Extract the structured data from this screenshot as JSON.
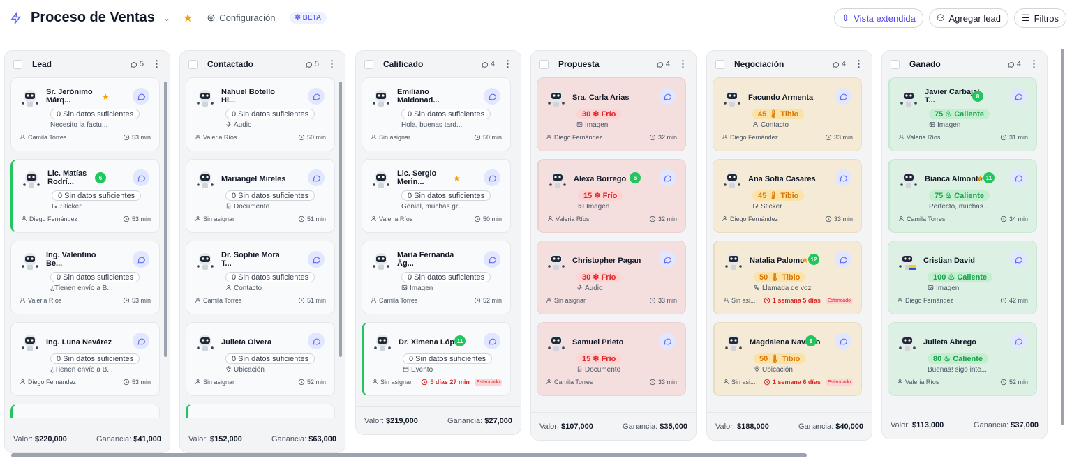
{
  "header": {
    "title": "Proceso de Ventas",
    "config_label": "Configuración",
    "beta_label": "BETA",
    "btn_extended": "Vista extendida",
    "btn_add": "Agregar lead",
    "btn_filters": "Filtros"
  },
  "colors": {
    "accent": "#4f46e5",
    "green": "#22c55e",
    "frio": "#dc2626",
    "tibio": "#d97706",
    "caliente": "#16a34a"
  },
  "columns": [
    {
      "name": "Lead",
      "count": "5",
      "footer": {
        "valor_label": "Valor:",
        "valor": "$220,000",
        "ganancia_label": "Ganancia:",
        "ganancia": "$41,000"
      },
      "cards": [
        {
          "name": "Sr. Jerónimo Márq...",
          "star": true,
          "pill": "0 Sin datos suficientes",
          "pill_type": "gray",
          "sub": "Necesito la factu...",
          "assignee": "Camila Torres",
          "time": "53 min"
        },
        {
          "name": "Lic. Matías Rodrí...",
          "badge": "6",
          "bar": true,
          "pill": "0 Sin datos suficientes",
          "pill_type": "gray",
          "sub": "Sticker",
          "sub_icon": "sticker-icon",
          "assignee": "Diego Fernández",
          "time": "53 min"
        },
        {
          "name": "Ing. Valentino Be...",
          "pill": "0 Sin datos suficientes",
          "pill_type": "gray",
          "sub": "¿Tienen envío a B...",
          "assignee": "Valeria Ríos",
          "time": "53 min"
        },
        {
          "name": "Ing. Luna Nevárez",
          "pill": "0 Sin datos suficientes",
          "pill_type": "gray",
          "sub": "¿Tienen envío a B...",
          "assignee": "Diego Fernández",
          "time": "53 min"
        }
      ]
    },
    {
      "name": "Contactado",
      "count": "5",
      "footer": {
        "valor_label": "Valor:",
        "valor": "$152,000",
        "ganancia_label": "Ganancia:",
        "ganancia": "$63,000"
      },
      "cards": [
        {
          "name": "Nahuel Botello Hi...",
          "pill": "0 Sin datos suficientes",
          "pill_type": "gray",
          "sub": "Audio",
          "sub_icon": "mic-icon",
          "assignee": "Valeria Ríos",
          "time": "50 min"
        },
        {
          "name": "Mariangel Mireles",
          "pill": "0 Sin datos suficientes",
          "pill_type": "gray",
          "sub": "Documento",
          "sub_icon": "document-icon",
          "assignee": "Sin asignar",
          "time": "51 min"
        },
        {
          "name": "Dr. Sophie Mora T...",
          "pill": "0 Sin datos suficientes",
          "pill_type": "gray",
          "sub": "Contacto",
          "sub_icon": "contact-icon",
          "assignee": "Camila Torres",
          "time": "51 min"
        },
        {
          "name": "Julieta Olvera",
          "pill": "0 Sin datos suficientes",
          "pill_type": "gray",
          "sub": "Ubicación",
          "sub_icon": "location-icon",
          "assignee": "Sin asignar",
          "time": "52 min"
        }
      ]
    },
    {
      "name": "Calificado",
      "count": "4",
      "footer": {
        "valor_label": "Valor:",
        "valor": "$219,000",
        "ganancia_label": "Ganancia:",
        "ganancia": "$27,000"
      },
      "cards": [
        {
          "name": "Emiliano Maldonad...",
          "pill": "0 Sin datos suficientes",
          "pill_type": "gray",
          "sub": "Hola, buenas tard...",
          "assignee": "Sin asignar",
          "time": "50 min"
        },
        {
          "name": "Lic. Sergio Merin...",
          "star": true,
          "pill": "0 Sin datos suficientes",
          "pill_type": "gray",
          "sub": "Genial, muchas gr...",
          "assignee": "Valeria Ríos",
          "time": "50 min"
        },
        {
          "name": "María Fernanda Ág...",
          "pill": "0 Sin datos suficientes",
          "pill_type": "gray",
          "sub": "Imagen",
          "sub_icon": "image-icon",
          "assignee": "Camila Torres",
          "time": "52 min"
        },
        {
          "name": "Dr. Ximena López",
          "badge": "11",
          "bar": true,
          "pill": "0 Sin datos suficientes",
          "pill_type": "gray",
          "sub": "Evento",
          "sub_icon": "calendar-icon",
          "assignee": "Sin asignar",
          "stall": "5 días 27 min",
          "stall_tag": "Estancado"
        }
      ]
    },
    {
      "name": "Propuesta",
      "count": "4",
      "footer": {
        "valor_label": "Valor:",
        "valor": "$107,000",
        "ganancia_label": "Ganancia:",
        "ganancia": "$35,000"
      },
      "cards": [
        {
          "name": "Sra. Carla Arias",
          "tone": "red",
          "pill": "30 ❄ Frío",
          "pill_type": "frio",
          "sub": "Imagen",
          "sub_icon": "image-icon",
          "assignee": "Diego Fernández",
          "time": "32 min"
        },
        {
          "name": "Alexa Borrego",
          "badge": "6",
          "bar": true,
          "tone": "red",
          "pill": "15 ❄ Frío",
          "pill_type": "frio",
          "sub": "Imagen",
          "sub_icon": "image-icon",
          "assignee": "Valeria Ríos",
          "time": "32 min"
        },
        {
          "name": "Christopher Pagan",
          "tone": "red",
          "pill": "30 ❄ Frío",
          "pill_type": "frio",
          "sub": "Audio",
          "sub_icon": "mic-icon",
          "assignee": "Sin asignar",
          "time": "33 min"
        },
        {
          "name": "Samuel Prieto",
          "tone": "red",
          "pill": "15 ❄ Frío",
          "pill_type": "frio",
          "sub": "Documento",
          "sub_icon": "document-icon",
          "assignee": "Camila Torres",
          "time": "33 min"
        }
      ]
    },
    {
      "name": "Negociación",
      "count": "4",
      "footer": {
        "valor_label": "Valor:",
        "valor": "$188,000",
        "ganancia_label": "Ganancia:",
        "ganancia": "$40,000"
      },
      "cards": [
        {
          "name": "Facundo Armenta",
          "tone": "amber",
          "pill": "45 🌡 Tibio",
          "pill_type": "tibio",
          "sub": "Contacto",
          "sub_icon": "contact-icon",
          "assignee": "Diego Fernández",
          "time": "33 min"
        },
        {
          "name": "Ana Sofía Casares",
          "tone": "amber",
          "pill": "45 🌡 Tibio",
          "pill_type": "tibio",
          "sub": "Sticker",
          "sub_icon": "sticker-icon",
          "assignee": "Diego Fernández",
          "time": "33 min"
        },
        {
          "name": "Natalia Palomo",
          "star": true,
          "badge": "12",
          "bar": true,
          "tone": "amber",
          "pill": "50 🌡 Tibio",
          "pill_type": "tibio",
          "sub": "Llamada de voz",
          "sub_icon": "phone-icon",
          "assignee": "Sin asi...",
          "stall": "1 semana 5 días",
          "stall_tag": "Estancado"
        },
        {
          "name": "Magdalena Navarro",
          "badge": "8",
          "bar": true,
          "tone": "amber",
          "pill": "50 🌡 Tibio",
          "pill_type": "tibio",
          "sub": "Ubicación",
          "sub_icon": "location-icon",
          "assignee": "Sin asi...",
          "stall": "1 semana 6 días",
          "stall_tag": "Estancado"
        }
      ]
    },
    {
      "name": "Ganado",
      "count": "4",
      "footer": {
        "valor_label": "Valor:",
        "valor": "$113,000",
        "ganancia_label": "Ganancia:",
        "ganancia": "$37,000"
      },
      "cards": [
        {
          "name": "Javier Carbajal T...",
          "badge": "8",
          "bar": true,
          "tone": "green",
          "pill": "75 ♨ Caliente",
          "pill_type": "caliente",
          "sub": "Imagen",
          "sub_icon": "image-icon",
          "assignee": "Valeria Ríos",
          "time": "31 min"
        },
        {
          "name": "Bianca Almonte",
          "star": true,
          "badge": "11",
          "bar": true,
          "tone": "green",
          "pill": "75 ♨ Caliente",
          "pill_type": "caliente",
          "sub": "Perfecto, muchas ...",
          "assignee": "Camila Torres",
          "time": "34 min"
        },
        {
          "name": "Cristian David",
          "flag": true,
          "tone": "green",
          "pill": "100 ♨ Caliente",
          "pill_type": "caliente",
          "sub": "Imagen",
          "sub_icon": "image-icon",
          "assignee": "Diego Fernández",
          "time": "42 min"
        },
        {
          "name": "Julieta Abrego",
          "tone": "green",
          "pill": "80 ♨ Caliente",
          "pill_type": "caliente",
          "sub": "Buenas! sigo inte...",
          "assignee": "Valeria Ríos",
          "time": "52 min"
        }
      ]
    }
  ]
}
